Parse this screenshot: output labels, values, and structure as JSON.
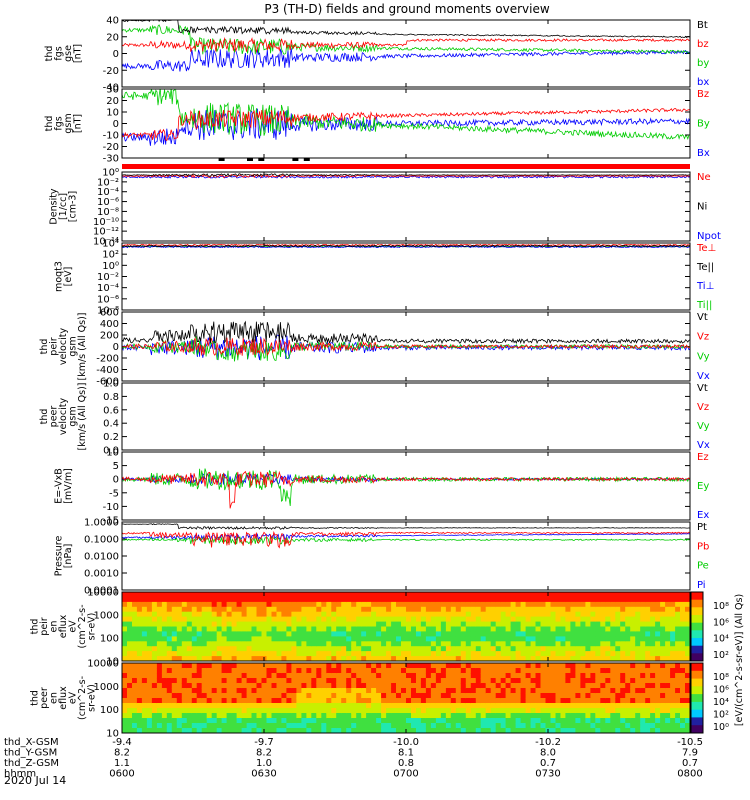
{
  "chart_data": {
    "type": "line",
    "title": "P3 (TH-D) fields and ground moments overview",
    "date": "2020 Jul 14",
    "x_ticks": [
      "0600",
      "0630",
      "0700",
      "0730",
      "0800"
    ],
    "orbit": [
      {
        "label": "thd_X-GSM",
        "values": [
          "-9.4",
          "-9.7",
          "-10.0",
          "-10.2",
          "-10.5"
        ]
      },
      {
        "label": "thd_Y-GSM",
        "values": [
          "8.2",
          "8.2",
          "8.1",
          "8.0",
          "7.9"
        ]
      },
      {
        "label": "thd_Z-GSM",
        "values": [
          "1.1",
          "1.0",
          "0.8",
          "0.7",
          "0.7"
        ]
      },
      {
        "label": "hhmm",
        "values": [
          "0600",
          "0630",
          "0700",
          "0730",
          "0800"
        ]
      }
    ],
    "panels": [
      {
        "ylabel": [
          "thd",
          "fgs",
          "gse",
          "[nT]"
        ],
        "ylim": [
          -40,
          40
        ],
        "yticks": [
          "40",
          "20",
          "0",
          "-20",
          "-40"
        ],
        "series": [
          {
            "name": "Bt",
            "color": "#000000"
          },
          {
            "name": "bz",
            "color": "#ff0000"
          },
          {
            "name": "by",
            "color": "#00cc00"
          },
          {
            "name": "bx",
            "color": "#0000ff"
          }
        ]
      },
      {
        "ylabel": [
          "thd",
          "fgs",
          "gsm",
          "[nT]"
        ],
        "ylim": [
          -30,
          30
        ],
        "yticks": [
          "30",
          "20",
          "10",
          "0",
          "-10",
          "-20",
          "-30"
        ],
        "series": [
          {
            "name": "Bz",
            "color": "#ff0000"
          },
          {
            "name": "By",
            "color": "#00cc00"
          },
          {
            "name": "Bx",
            "color": "#0000ff"
          }
        ]
      },
      {
        "ylabel": [
          "Density",
          "[1/cc]",
          "[cm-3]"
        ],
        "yticks": [
          "10⁰",
          "10⁻²",
          "10⁻⁴",
          "10⁻⁶",
          "10⁻⁸",
          "10⁻¹⁰",
          "10⁻¹²",
          "10⁻¹⁴"
        ],
        "series": [
          {
            "name": "Ne",
            "color": "#ff0000"
          },
          {
            "name": "Ni",
            "color": "#000000"
          },
          {
            "name": "Npot",
            "color": "#0000ff"
          }
        ]
      },
      {
        "ylabel": [
          "moqt3",
          "[eV]"
        ],
        "yticks": [
          "10⁴",
          "10²",
          "10⁰",
          "10⁻²",
          "10⁻⁴",
          "10⁻⁶",
          "10⁻⁸"
        ],
        "series": [
          {
            "name": "Te⊥",
            "color": "#ff0000"
          },
          {
            "name": "Te||",
            "color": "#000000"
          },
          {
            "name": "Ti⊥",
            "color": "#0000ff"
          },
          {
            "name": "Ti||",
            "color": "#00cc00"
          }
        ]
      },
      {
        "ylabel": [
          "thd",
          "peir",
          "velocity",
          "gsm",
          "[km/s (All Qs)]"
        ],
        "ylim": [
          -600,
          600
        ],
        "yticks": [
          "600",
          "400",
          "200",
          "0",
          "-200",
          "-400",
          "-600"
        ],
        "series": [
          {
            "name": "Vt",
            "color": "#000000"
          },
          {
            "name": "Vz",
            "color": "#ff0000"
          },
          {
            "name": "Vy",
            "color": "#00cc00"
          },
          {
            "name": "Vx",
            "color": "#0000ff"
          }
        ]
      },
      {
        "ylabel": [
          "thd",
          "peer",
          "velocity",
          "gsm",
          "[km/s (All Qs)]"
        ],
        "ylim": [
          0,
          1
        ],
        "yticks": [
          "1.0",
          "0.8",
          "0.6",
          "0.4",
          "0.2",
          "0.0"
        ],
        "series": [
          {
            "name": "Vt",
            "color": "#000000"
          },
          {
            "name": "Vz",
            "color": "#ff0000"
          },
          {
            "name": "Vy",
            "color": "#00cc00"
          },
          {
            "name": "Vx",
            "color": "#0000ff"
          }
        ]
      },
      {
        "ylabel": [
          "E=-VxB",
          "[mV/m]"
        ],
        "ylim": [
          -15,
          10
        ],
        "yticks": [
          "10",
          "5",
          "0",
          "-5",
          "-10",
          "-15"
        ],
        "series": [
          {
            "name": "Ez",
            "color": "#ff0000"
          },
          {
            "name": "Ey",
            "color": "#00cc00"
          },
          {
            "name": "Ex",
            "color": "#0000ff"
          }
        ]
      },
      {
        "ylabel": [
          "Pressure",
          "[nPa]"
        ],
        "yticks": [
          "1.0000",
          "0.1000",
          "0.0100",
          "0.0010",
          "0.0001"
        ],
        "series": [
          {
            "name": "Pt",
            "color": "#000000"
          },
          {
            "name": "Pb",
            "color": "#ff0000"
          },
          {
            "name": "Pe",
            "color": "#00cc00"
          },
          {
            "name": "Pi",
            "color": "#0000ff"
          }
        ]
      },
      {
        "ylabel": [
          "thd",
          "peir",
          "en",
          "eflux",
          "eV",
          "(cm^2-s-",
          "sr-eV)"
        ],
        "type": "heatmap",
        "yticks": [
          "10000",
          "1000",
          "100",
          "10"
        ],
        "colorbar": [
          "10⁸",
          "10⁶",
          "10⁴",
          "10²"
        ]
      },
      {
        "ylabel": [
          "thd",
          "peer",
          "en",
          "eflux",
          "eV",
          "(cm^2-s-",
          "sr-eV)"
        ],
        "type": "heatmap",
        "yticks": [
          "10000",
          "1000",
          "100",
          "10"
        ],
        "colorbar": [
          "10⁸",
          "10⁶",
          "10⁴",
          "10²",
          "10⁰"
        ]
      }
    ],
    "colorbar_label": "[eV/(cm^2-s-sr-eV)] (All Qs)"
  }
}
